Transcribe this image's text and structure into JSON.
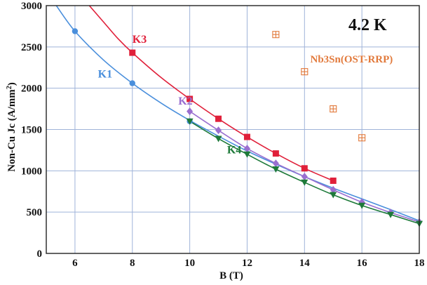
{
  "chart_data": {
    "type": "line",
    "title": "",
    "annotation": "4.2 K",
    "xlabel": "B (T)",
    "ylabel_main": "Non-Cu Jc (A/mm",
    "ylabel_sup": "2",
    "ylabel_close": ")",
    "xlim": [
      5,
      18
    ],
    "ylim": [
      0,
      3000
    ],
    "x_ticks": [
      6,
      8,
      10,
      12,
      14,
      16,
      18
    ],
    "y_ticks": [
      0,
      500,
      1000,
      1500,
      2000,
      2500,
      3000
    ],
    "grid": true,
    "series": [
      {
        "name": "K1",
        "color": "#4a8fdc",
        "marker": "circle",
        "x": [
          6,
          8,
          10
        ],
        "y": [
          2690,
          2060,
          1600
        ],
        "curve": [
          [
            5.35,
            3000
          ],
          [
            6,
            2690
          ],
          [
            7,
            2340
          ],
          [
            8,
            2060
          ],
          [
            9,
            1820
          ],
          [
            10,
            1610
          ],
          [
            11,
            1420
          ],
          [
            12,
            1240
          ],
          [
            13,
            1080
          ],
          [
            14,
            930
          ],
          [
            15,
            790
          ],
          [
            16,
            660
          ],
          [
            17,
            530
          ],
          [
            18,
            395
          ]
        ],
        "label_pos": [
          6.8,
          2130
        ]
      },
      {
        "name": "K2",
        "color": "#9a6fd0",
        "marker": "diamond",
        "x": [
          10,
          11,
          12,
          13,
          14,
          15,
          16,
          17,
          18
        ],
        "y": [
          1720,
          1490,
          1270,
          1090,
          930,
          770,
          620,
          495,
          380
        ],
        "label_pos": [
          9.6,
          1800
        ]
      },
      {
        "name": "K3",
        "color": "#e0203a",
        "marker": "square",
        "x": [
          8,
          10,
          11,
          12,
          13,
          14,
          15
        ],
        "y": [
          2430,
          1870,
          1630,
          1410,
          1210,
          1030,
          880
        ],
        "curve": [
          [
            6.5,
            3000
          ],
          [
            7,
            2800
          ],
          [
            7.5,
            2600
          ],
          [
            8,
            2430
          ],
          [
            9,
            2130
          ],
          [
            10,
            1870
          ],
          [
            11,
            1630
          ],
          [
            12,
            1410
          ],
          [
            13,
            1210
          ],
          [
            14,
            1030
          ],
          [
            15,
            880
          ]
        ],
        "label_pos": [
          8.0,
          2550
        ]
      },
      {
        "name": "K4",
        "color": "#1e7a3a",
        "marker": "triangle-down",
        "x": [
          10,
          11,
          12,
          13,
          14,
          15,
          16,
          17,
          18
        ],
        "y": [
          1600,
          1390,
          1200,
          1020,
          860,
          710,
          580,
          470,
          360
        ],
        "label_pos": [
          11.3,
          1210
        ]
      }
    ],
    "reference": {
      "name": "Nb3Sn(OST-RRP)",
      "color": "#e27a3c",
      "marker": "boxed-plus",
      "x": [
        13,
        14,
        15,
        16
      ],
      "y": [
        2650,
        2200,
        1750,
        1400
      ],
      "label_pos": [
        14.2,
        2310
      ]
    }
  }
}
